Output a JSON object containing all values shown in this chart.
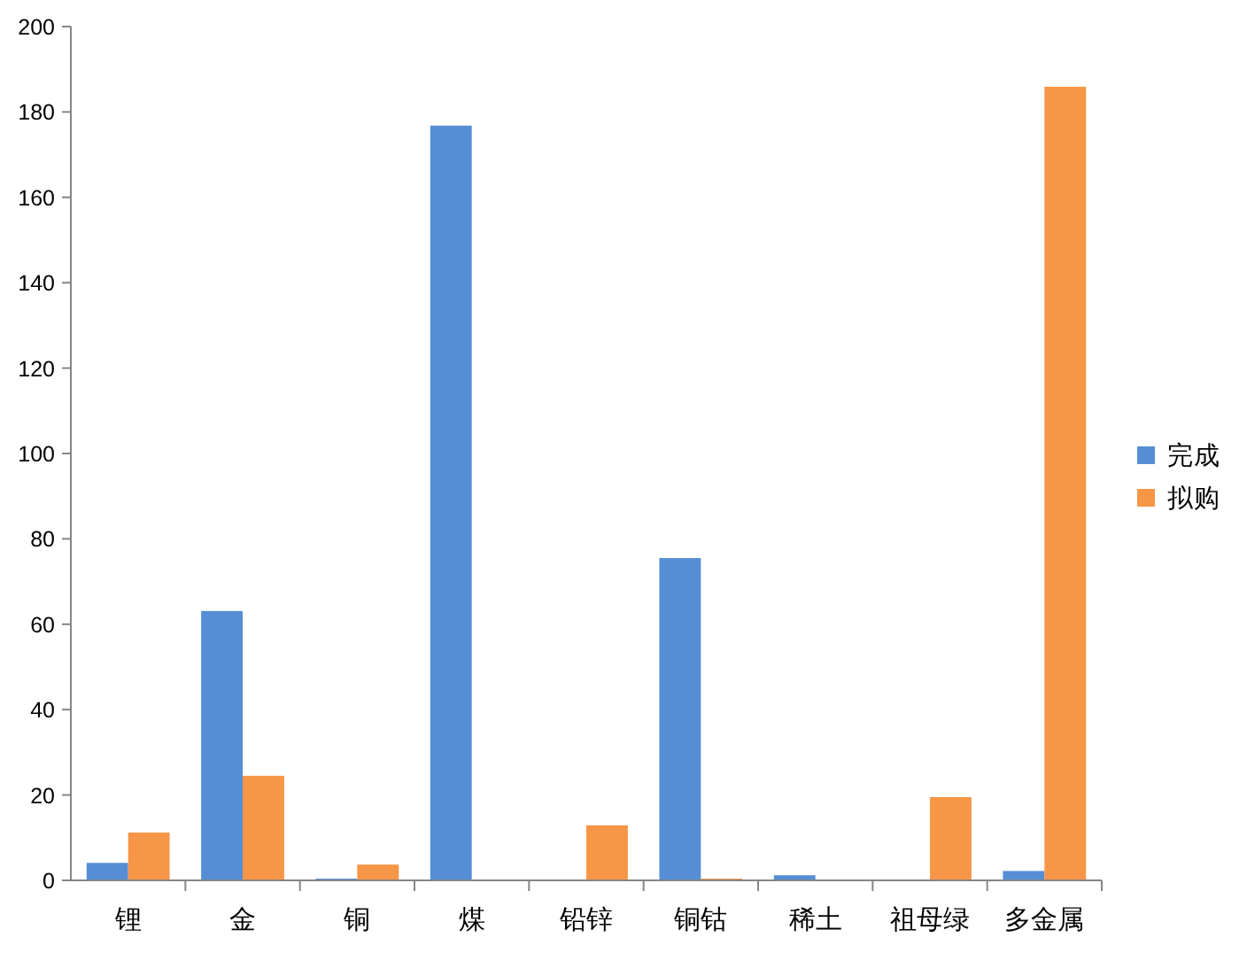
{
  "chart_data": {
    "type": "bar",
    "categories": [
      "锂",
      "金",
      "铜",
      "煤",
      "铅锌",
      "铜钴",
      "稀土",
      "祖母绿",
      "多金属"
    ],
    "series": [
      {
        "name": "完成",
        "color": "#558ed5",
        "values": [
          4.1,
          63.1,
          0.4,
          176.8,
          null,
          75.5,
          1.2,
          null,
          2.2
        ]
      },
      {
        "name": "拟购",
        "color": "#f79646",
        "values": [
          11.2,
          24.5,
          3.7,
          null,
          12.9,
          0.4,
          null,
          19.5,
          185.9
        ]
      }
    ],
    "ylim": [
      0,
      200
    ],
    "yticks": [
      0,
      20,
      40,
      60,
      80,
      100,
      120,
      140,
      160,
      180,
      200
    ],
    "legend": "right"
  }
}
